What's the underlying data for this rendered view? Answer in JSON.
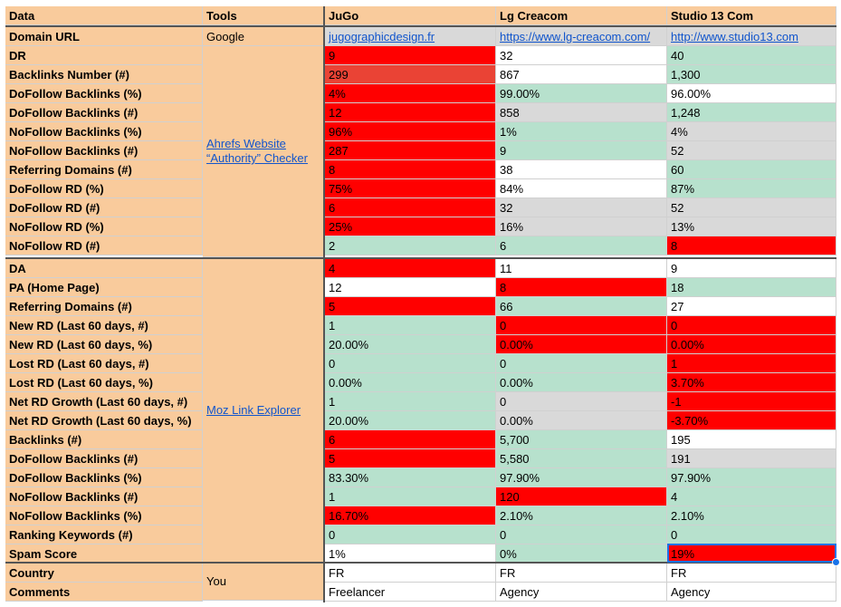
{
  "header": {
    "data": "Data",
    "tools": "Tools",
    "site1": "JuGo",
    "site2": "Lg Creacom",
    "site3": "Studio 13 Com"
  },
  "domain_row": {
    "label": "Domain URL",
    "tool": "Google",
    "v1": "jugographicdesign.fr",
    "v2": "https://www.lg-creacom.com/",
    "v3": "http://www.studio13.com"
  },
  "tool_groups": {
    "ahrefs": "Ahrefs Website “Authority” Checker",
    "moz": "Moz Link Explorer",
    "you": "You"
  },
  "rows": [
    {
      "label": "DR",
      "v1": "9",
      "v2": "32",
      "v3": "40"
    },
    {
      "label": "Backlinks Number (#)",
      "v1": "299",
      "v2": "867",
      "v3": "1,300"
    },
    {
      "label": "DoFollow Backlinks (%)",
      "v1": "4%",
      "v2": "99.00%",
      "v3": "96.00%"
    },
    {
      "label": "DoFollow Backlinks (#)",
      "v1": "12",
      "v2": "858",
      "v3": "1,248"
    },
    {
      "label": "NoFollow Backlinks (%)",
      "v1": "96%",
      "v2": "1%",
      "v3": "4%"
    },
    {
      "label": "NoFollow Backlinks (#)",
      "v1": "287",
      "v2": "9",
      "v3": "52"
    },
    {
      "label": "Referring Domains (#)",
      "v1": "8",
      "v2": "38",
      "v3": "60"
    },
    {
      "label": "DoFollow RD (%)",
      "v1": "75%",
      "v2": "84%",
      "v3": "87%"
    },
    {
      "label": "DoFollow RD (#)",
      "v1": "6",
      "v2": "32",
      "v3": "52"
    },
    {
      "label": "NoFollow RD (%)",
      "v1": "25%",
      "v2": "16%",
      "v3": "13%"
    },
    {
      "label": "NoFollow RD (#)",
      "v1": "2",
      "v2": "6",
      "v3": "8"
    },
    {
      "label": "DA",
      "v1": "4",
      "v2": "11",
      "v3": "9"
    },
    {
      "label": "PA (Home Page)",
      "v1": "12",
      "v2": "8",
      "v3": "18"
    },
    {
      "label": "Referring Domains (#)",
      "v1": "5",
      "v2": "66",
      "v3": "27"
    },
    {
      "label": "New RD (Last 60 days, #)",
      "v1": "1",
      "v2": "0",
      "v3": "0"
    },
    {
      "label": "New RD (Last 60 days, %)",
      "v1": "20.00%",
      "v2": "0.00%",
      "v3": "0.00%"
    },
    {
      "label": "Lost RD (Last 60 days, #)",
      "v1": "0",
      "v2": "0",
      "v3": "1"
    },
    {
      "label": "Lost RD (Last 60 days, %)",
      "v1": "0.00%",
      "v2": "0.00%",
      "v3": "3.70%"
    },
    {
      "label": "Net RD Growth (Last 60 days, #)",
      "v1": "1",
      "v2": "0",
      "v3": "-1"
    },
    {
      "label": "Net RD Growth (Last 60 days, %)",
      "v1": "20.00%",
      "v2": "0.00%",
      "v3": "-3.70%"
    },
    {
      "label": "Backlinks (#)",
      "v1": "6",
      "v2": "5,700",
      "v3": "195"
    },
    {
      "label": "DoFollow Backlinks (#)",
      "v1": "5",
      "v2": "5,580",
      "v3": "191"
    },
    {
      "label": "DoFollow Backlinks (%)",
      "v1": "83.30%",
      "v2": "97.90%",
      "v3": "97.90%"
    },
    {
      "label": "NoFollow Backlinks (#)",
      "v1": "1",
      "v2": "120",
      "v3": "4"
    },
    {
      "label": "NoFollow Backlinks (%)",
      "v1": "16.70%",
      "v2": "2.10%",
      "v3": "2.10%"
    },
    {
      "label": "Ranking Keywords (#)",
      "v1": "0",
      "v2": "0",
      "v3": "0"
    },
    {
      "label": "Spam Score",
      "v1": "1%",
      "v2": "0%",
      "v3": "19%"
    },
    {
      "label": "Country",
      "v1": "FR",
      "v2": "FR",
      "v3": "FR"
    },
    {
      "label": "Comments",
      "v1": "Freelancer",
      "v2": "Agency",
      "v3": "Agency"
    }
  ],
  "colors": {
    "header_bg": "#f9cb9c",
    "good": "#b7e1cd",
    "bad": "#ff0000",
    "neutral": "#d9d9d9",
    "link": "#1155cc",
    "selection": "#1a73e8"
  }
}
